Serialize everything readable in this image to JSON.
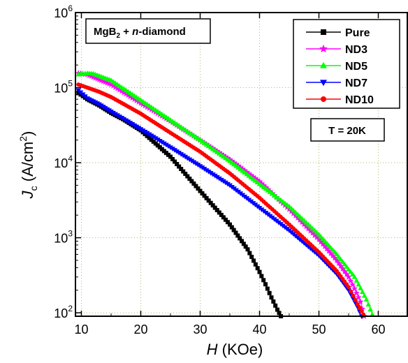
{
  "chart_data": {
    "type": "scatter",
    "xlabel": "H (KOe)",
    "xlabel_italic": "H",
    "xlabel_unit": "(KOe)",
    "ylabel_main": "J",
    "ylabel_sub": "c",
    "ylabel_unit": " (A/cm",
    "ylabel_sup": "2",
    "ylabel_close": ")",
    "xlim": [
      9,
      65
    ],
    "ylim": [
      90,
      1000000
    ],
    "y_scale": "log",
    "grid": true,
    "x_ticks": [
      10,
      20,
      30,
      40,
      50,
      60
    ],
    "y_ticks": [
      {
        "value": 100,
        "base": "10",
        "exp": "2"
      },
      {
        "value": 1000,
        "base": "10",
        "exp": "3"
      },
      {
        "value": 10000,
        "base": "10",
        "exp": "4"
      },
      {
        "value": 100000,
        "base": "10",
        "exp": "5"
      },
      {
        "value": 1000000,
        "base": "10",
        "exp": "6"
      }
    ],
    "sample_label": {
      "prefix": "MgB",
      "sub": "2",
      "middle": " + ",
      "italic": "n",
      "suffix": "-diamond"
    },
    "temperature_label": "T = 20K",
    "legend_position": "top-right",
    "series": [
      {
        "name": "Pure",
        "color": "#000000",
        "marker": "square",
        "points": [
          [
            9.5,
            85000
          ],
          [
            11,
            70000
          ],
          [
            13,
            58000
          ],
          [
            15,
            46000
          ],
          [
            17,
            38000
          ],
          [
            20,
            27000
          ],
          [
            25,
            12000
          ],
          [
            30,
            4200
          ],
          [
            35,
            1500
          ],
          [
            38,
            700
          ],
          [
            40,
            350
          ],
          [
            41,
            240
          ],
          [
            42,
            160
          ],
          [
            43,
            110
          ],
          [
            43.6,
            90
          ]
        ]
      },
      {
        "name": "ND3",
        "color": "#ff00ff",
        "marker": "star",
        "points": [
          [
            9.5,
            155000
          ],
          [
            11,
            150000
          ],
          [
            13,
            128000
          ],
          [
            15,
            110000
          ],
          [
            20,
            62000
          ],
          [
            25,
            36000
          ],
          [
            30,
            20000
          ],
          [
            35,
            11000
          ],
          [
            40,
            5600
          ],
          [
            45,
            2400
          ],
          [
            50,
            950
          ],
          [
            53,
            500
          ],
          [
            55,
            300
          ],
          [
            56,
            210
          ],
          [
            57,
            140
          ],
          [
            57.6,
            90
          ]
        ]
      },
      {
        "name": "ND5",
        "color": "#00ff00",
        "marker": "triangle-up",
        "points": [
          [
            9.5,
            150000
          ],
          [
            11,
            155000
          ],
          [
            12,
            153000
          ],
          [
            15,
            125000
          ],
          [
            20,
            68000
          ],
          [
            25,
            37000
          ],
          [
            30,
            20000
          ],
          [
            35,
            10500
          ],
          [
            40,
            5200
          ],
          [
            45,
            2600
          ],
          [
            50,
            1100
          ],
          [
            53,
            600
          ],
          [
            56,
            300
          ],
          [
            58,
            150
          ],
          [
            59,
            95
          ]
        ]
      },
      {
        "name": "ND7",
        "color": "#0000ff",
        "marker": "triangle-down",
        "points": [
          [
            9.5,
            92000
          ],
          [
            11,
            72000
          ],
          [
            13,
            60000
          ],
          [
            15,
            48000
          ],
          [
            20,
            28000
          ],
          [
            25,
            16000
          ],
          [
            30,
            9000
          ],
          [
            35,
            5000
          ],
          [
            40,
            2500
          ],
          [
            45,
            1250
          ],
          [
            50,
            580
          ],
          [
            53,
            330
          ],
          [
            55,
            200
          ],
          [
            56.5,
            120
          ],
          [
            57.2,
            90
          ]
        ]
      },
      {
        "name": "ND10",
        "color": "#ff0000",
        "marker": "circle",
        "points": [
          [
            9.5,
            110000
          ],
          [
            11,
            100000
          ],
          [
            13,
            88000
          ],
          [
            15,
            75000
          ],
          [
            20,
            45000
          ],
          [
            25,
            25000
          ],
          [
            30,
            14000
          ],
          [
            35,
            7200
          ],
          [
            40,
            3400
          ],
          [
            45,
            1500
          ],
          [
            50,
            640
          ],
          [
            53,
            360
          ],
          [
            55,
            220
          ],
          [
            56.5,
            130
          ],
          [
            57.5,
            95
          ]
        ]
      }
    ]
  }
}
